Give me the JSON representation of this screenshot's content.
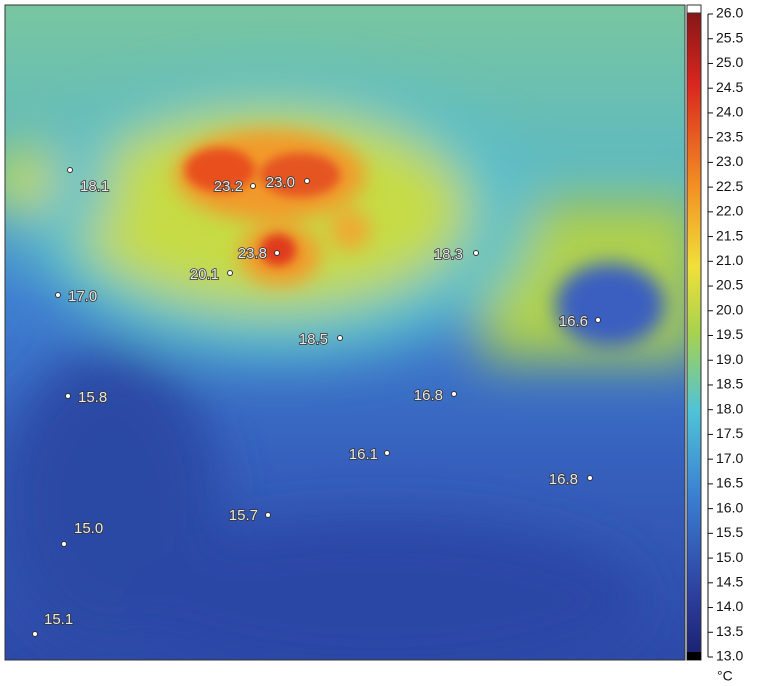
{
  "image": {
    "points": [
      {
        "label": "18.1"
      },
      {
        "label": "23.2"
      },
      {
        "label": "23.0"
      },
      {
        "label": "23.8"
      },
      {
        "label": "20.1"
      },
      {
        "label": "17.0"
      },
      {
        "label": "18.3"
      },
      {
        "label": "16.6"
      },
      {
        "label": "18.5"
      },
      {
        "label": "16.8"
      },
      {
        "label": "15.8"
      },
      {
        "label": "16.1"
      },
      {
        "label": "16.8"
      },
      {
        "label": "15.7"
      },
      {
        "label": "15.0"
      },
      {
        "label": "15.1"
      }
    ]
  },
  "colorbar": {
    "ticks": [
      "26.0",
      "25.5",
      "25.0",
      "24.5",
      "24.0",
      "23.5",
      "23.0",
      "22.5",
      "22.0",
      "21.5",
      "21.0",
      "20.5",
      "20.0",
      "19.5",
      "19.0",
      "18.5",
      "18.0",
      "17.5",
      "17.0",
      "16.5",
      "16.0",
      "15.5",
      "15.0",
      "14.5",
      "14.0",
      "13.5",
      "13.0"
    ],
    "unit": "°C"
  }
}
